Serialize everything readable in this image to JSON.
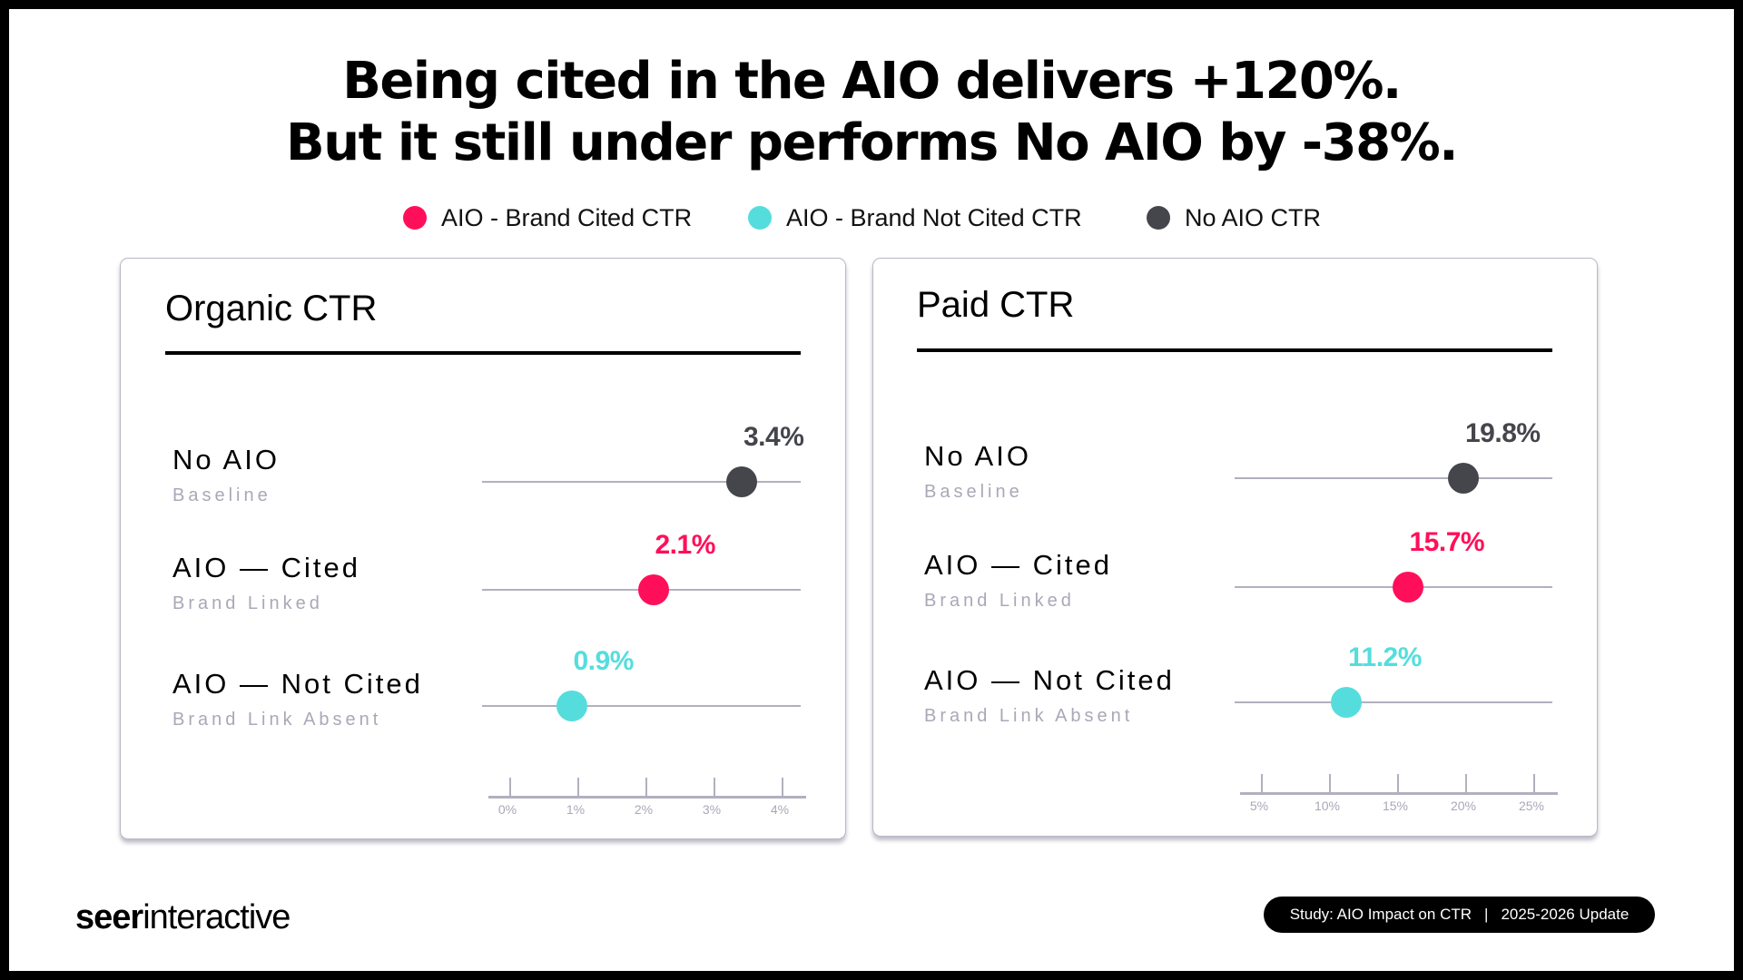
{
  "headline": {
    "line1": "Being cited in the AIO delivers +120%.",
    "line2": "But it still under performs No AIO by -38%."
  },
  "colors": {
    "brand_cited": "#FF0F5A",
    "brand_not_cited": "#55DDDD",
    "no_aio": "#45464C",
    "track": "#B1B0BE",
    "sublabel": "#A9A8B8"
  },
  "legend": [
    {
      "label": "AIO - Brand Cited CTR",
      "color": "#FF0F5A"
    },
    {
      "label": "AIO - Brand Not Cited CTR",
      "color": "#55DDDD"
    },
    {
      "label": "No AIO CTR",
      "color": "#45464C"
    }
  ],
  "chart_data": [
    {
      "type": "scatter",
      "title": "Organic CTR",
      "xlabel": "",
      "ylabel": "",
      "xlim": [
        0,
        4
      ],
      "x_ticks": [
        "0%",
        "1%",
        "2%",
        "3%",
        "4%"
      ],
      "categories": [
        "No AIO",
        "AIO — Cited",
        "AIO — Not Cited"
      ],
      "sublabels": [
        "Baseline",
        "Brand Linked",
        "Brand Link Absent"
      ],
      "values": [
        3.4,
        2.1,
        0.9
      ],
      "value_labels": [
        "3.4%",
        "2.1%",
        "0.9%"
      ],
      "series_colors": [
        "#45464C",
        "#FF0F5A",
        "#55DDDD"
      ],
      "grid": false
    },
    {
      "type": "scatter",
      "title": "Paid CTR",
      "xlabel": "",
      "ylabel": "",
      "xlim": [
        5,
        25
      ],
      "x_ticks": [
        "5%",
        "10%",
        "15%",
        "20%",
        "25%"
      ],
      "categories": [
        "No AIO",
        "AIO — Cited",
        "AIO — Not Cited"
      ],
      "sublabels": [
        "Baseline",
        "Brand Linked",
        "Brand Link Absent"
      ],
      "values": [
        19.8,
        15.7,
        11.2
      ],
      "value_labels": [
        "19.8%",
        "15.7%",
        "11.2%"
      ],
      "series_colors": [
        "#45464C",
        "#FF0F5A",
        "#55DDDD"
      ],
      "grid": false
    }
  ],
  "footer": {
    "logo_bold": "seer",
    "logo_regular": "interactive",
    "badge_left": "Study: AIO Impact on CTR",
    "badge_sep": "|",
    "badge_right": "2025-2026 Update"
  }
}
